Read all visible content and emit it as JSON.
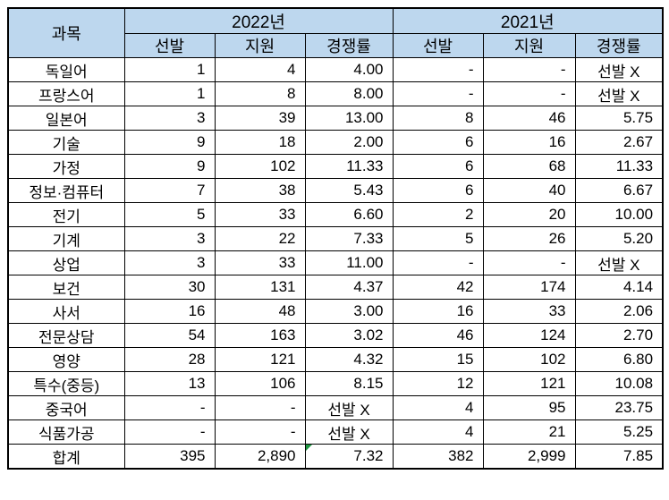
{
  "chart_data": {
    "type": "table",
    "corner_header": "과목",
    "column_groups": [
      {
        "label": "2022년",
        "subcolumns": [
          "선발",
          "지원",
          "경쟁률"
        ]
      },
      {
        "label": "2021년",
        "subcolumns": [
          "선발",
          "지원",
          "경쟁률"
        ]
      }
    ],
    "no_selection_label": "선발 X",
    "rows": [
      {
        "subject": "독일어",
        "values": [
          "1",
          "4",
          "4.00",
          "-",
          "-",
          "선발 X"
        ]
      },
      {
        "subject": "프랑스어",
        "values": [
          "1",
          "8",
          "8.00",
          "-",
          "-",
          "선발 X"
        ]
      },
      {
        "subject": "일본어",
        "values": [
          "3",
          "39",
          "13.00",
          "8",
          "46",
          "5.75"
        ]
      },
      {
        "subject": "기술",
        "values": [
          "9",
          "18",
          "2.00",
          "6",
          "16",
          "2.67"
        ]
      },
      {
        "subject": "가정",
        "values": [
          "9",
          "102",
          "11.33",
          "6",
          "68",
          "11.33"
        ]
      },
      {
        "subject": "정보·컴퓨터",
        "values": [
          "7",
          "38",
          "5.43",
          "6",
          "40",
          "6.67"
        ]
      },
      {
        "subject": "전기",
        "values": [
          "5",
          "33",
          "6.60",
          "2",
          "20",
          "10.00"
        ]
      },
      {
        "subject": "기계",
        "values": [
          "3",
          "22",
          "7.33",
          "5",
          "26",
          "5.20"
        ]
      },
      {
        "subject": "상업",
        "values": [
          "3",
          "33",
          "11.00",
          "-",
          "-",
          "선발 X"
        ]
      },
      {
        "subject": "보건",
        "values": [
          "30",
          "131",
          "4.37",
          "42",
          "174",
          "4.14"
        ]
      },
      {
        "subject": "사서",
        "values": [
          "16",
          "48",
          "3.00",
          "16",
          "33",
          "2.06"
        ]
      },
      {
        "subject": "전문상담",
        "values": [
          "54",
          "163",
          "3.02",
          "46",
          "124",
          "2.70"
        ]
      },
      {
        "subject": "영양",
        "values": [
          "28",
          "121",
          "4.32",
          "15",
          "102",
          "6.80"
        ]
      },
      {
        "subject": "특수(중등)",
        "values": [
          "13",
          "106",
          "8.15",
          "12",
          "121",
          "10.08"
        ]
      },
      {
        "subject": "중국어",
        "values": [
          "-",
          "-",
          "선발 X",
          "4",
          "95",
          "23.75"
        ]
      },
      {
        "subject": "식품가공",
        "values": [
          "-",
          "-",
          "선발 X",
          "4",
          "21",
          "5.25"
        ]
      },
      {
        "subject": "합계",
        "values": [
          "395",
          "2,890",
          "7.32",
          "382",
          "2,999",
          "7.85"
        ]
      }
    ],
    "green_corner_marker": {
      "row_index": 16,
      "value_index": 2
    },
    "colors": {
      "header_bg": "#BDD7EE",
      "border": "#000000",
      "error_marker_green": "#1E9641",
      "text": "#000000"
    }
  }
}
